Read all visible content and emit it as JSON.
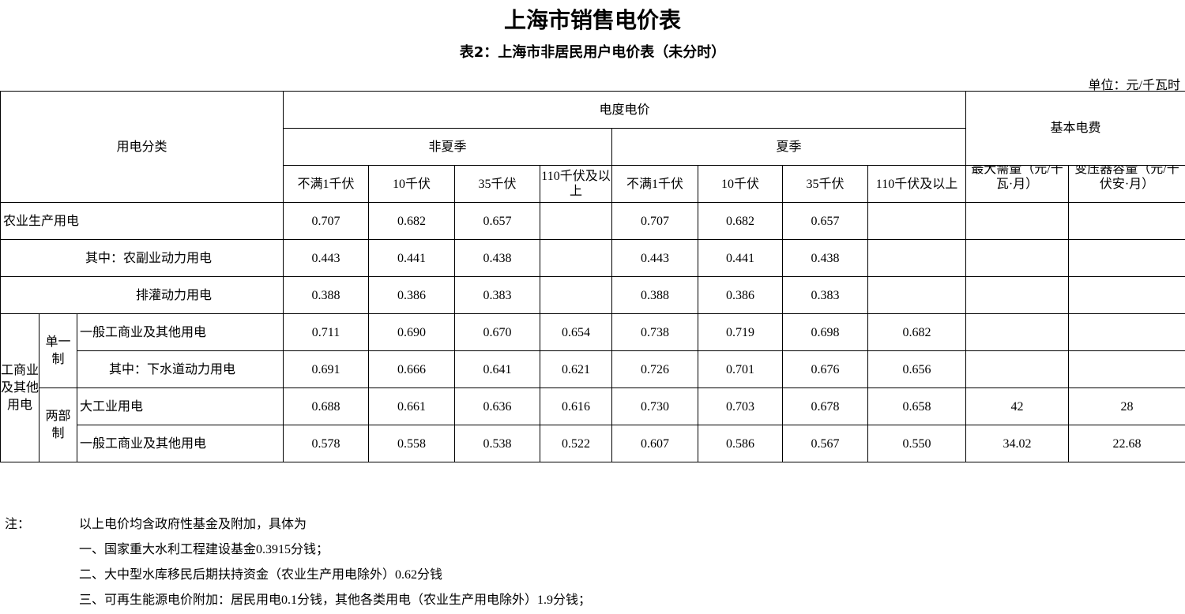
{
  "title": "上海市销售电价表",
  "subtitle": "表2：上海市非居民用户电价表（未分时）",
  "unit": "单位：元/千瓦时",
  "header": {
    "category": "用电分类",
    "energy_price": "电度电价",
    "basic_fee": "基本电费",
    "non_summer": "非夏季",
    "summer": "夏季",
    "voltages": [
      "不满1千伏",
      "10千伏",
      "35千伏",
      "110千伏及以上",
      "不满1千伏",
      "10千伏",
      "35千伏",
      "110千伏及以上"
    ],
    "max_demand": "最大需量（元/千瓦·月）",
    "transformer": "变压器容量（元/千伏安·月）"
  },
  "rows": [
    {
      "label": "农业生产用电",
      "values": [
        "0.707",
        "0.682",
        "0.657",
        "",
        "0.707",
        "0.682",
        "0.657",
        "",
        "",
        ""
      ]
    },
    {
      "label": "其中：农副业动力用电",
      "values": [
        "0.443",
        "0.441",
        "0.438",
        "",
        "0.443",
        "0.441",
        "0.438",
        "",
        "",
        ""
      ]
    },
    {
      "label": "排灌动力用电",
      "values": [
        "0.388",
        "0.386",
        "0.383",
        "",
        "0.388",
        "0.386",
        "0.383",
        "",
        "",
        ""
      ]
    },
    {
      "label": "一般工商业及其他用电",
      "values": [
        "0.711",
        "0.690",
        "0.670",
        "0.654",
        "0.738",
        "0.719",
        "0.698",
        "0.682",
        "",
        ""
      ]
    },
    {
      "label": "其中：下水道动力用电",
      "values": [
        "0.691",
        "0.666",
        "0.641",
        "0.621",
        "0.726",
        "0.701",
        "0.676",
        "0.656",
        "",
        ""
      ]
    },
    {
      "label": "大工业用电",
      "values": [
        "0.688",
        "0.661",
        "0.636",
        "0.616",
        "0.730",
        "0.703",
        "0.678",
        "0.658",
        "42",
        "28"
      ]
    },
    {
      "label": "一般工商业及其他用电",
      "values": [
        "0.578",
        "0.558",
        "0.538",
        "0.522",
        "0.607",
        "0.586",
        "0.567",
        "0.550",
        "34.02",
        "22.68"
      ]
    }
  ],
  "groups": {
    "commercial": "工商业及其他用电",
    "single": "单一制",
    "two_part": "两部制"
  },
  "notes": {
    "label": "注：",
    "lines": [
      "以上电价均含政府性基金及附加，具体为",
      "一、国家重大水利工程建设基金0.3915分钱；",
      "二、大中型水库移民后期扶持资金（农业生产用电除外）0.62分钱",
      "三、可再生能源电价附加：居民用电0.1分钱，其他各类用电（农业生产用电除外）1.9分钱；"
    ]
  }
}
